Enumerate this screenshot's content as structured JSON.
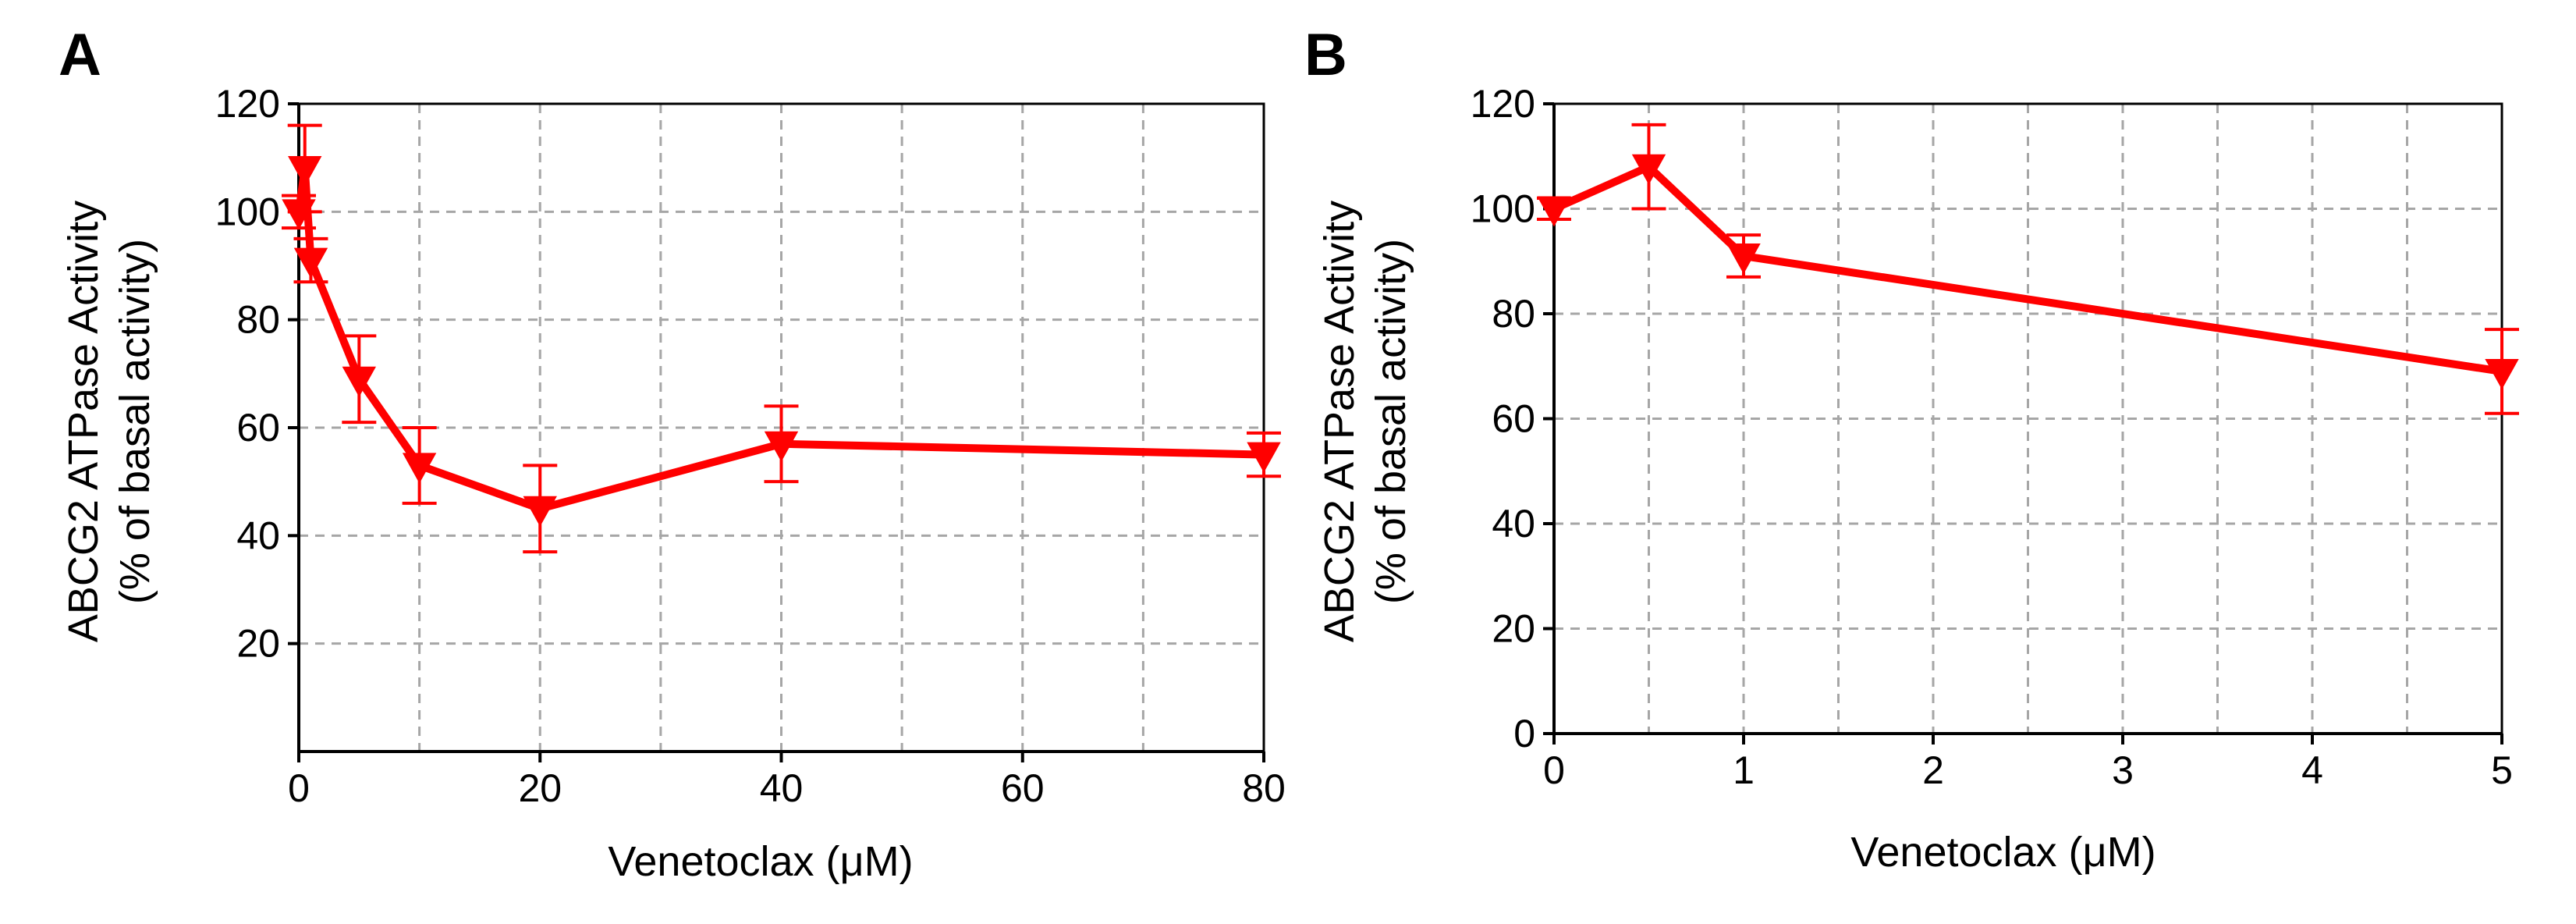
{
  "colors": {
    "series": "#ff0000",
    "grid": "#a6a6a6",
    "axis": "#000000"
  },
  "chart_data": [
    {
      "panel": "A",
      "type": "line",
      "title": "",
      "xlabel": "Venetoclax (μM)",
      "ylabel_line1": "ABCG2 ATPase Activity",
      "ylabel_line2": "(% of basal activity)",
      "xlim": [
        0,
        80
      ],
      "ylim": [
        0,
        120
      ],
      "x_ticks": [
        0,
        20,
        40,
        60,
        80
      ],
      "x_tick_labels": [
        "0",
        "20",
        "40",
        "60",
        "80"
      ],
      "x_minor": [
        10,
        30,
        50,
        70
      ],
      "y_ticks": [
        20,
        40,
        60,
        80,
        100,
        120
      ],
      "y_tick_labels": [
        "20",
        "40",
        "60",
        "80",
        "100",
        "120"
      ],
      "grid": true,
      "series": [
        {
          "name": "Venetoclax",
          "marker": "triangle-down",
          "x": [
            0,
            0.5,
            1,
            5,
            10,
            20,
            40,
            80
          ],
          "values": [
            100,
            108,
            91,
            69,
            53,
            45,
            57,
            55
          ],
          "error": [
            3,
            8,
            4,
            8,
            7,
            8,
            7,
            4
          ]
        }
      ]
    },
    {
      "panel": "B",
      "type": "line",
      "title": "",
      "xlabel": "Venetoclax (μM)",
      "ylabel_line1": "ABCG2 ATPase Activity",
      "ylabel_line2": "(% of basal activity)",
      "xlim": [
        0,
        5
      ],
      "ylim": [
        0,
        120
      ],
      "x_ticks": [
        0,
        1,
        2,
        3,
        4,
        5
      ],
      "x_tick_labels": [
        "0",
        "1",
        "2",
        "3",
        "4",
        "5"
      ],
      "x_minor": [
        0.5,
        1.5,
        2.5,
        3.5,
        4.5
      ],
      "y_ticks": [
        0,
        20,
        40,
        60,
        80,
        100,
        120
      ],
      "y_tick_labels": [
        "0",
        "20",
        "40",
        "60",
        "80",
        "100",
        "120"
      ],
      "grid": true,
      "series": [
        {
          "name": "Venetoclax",
          "marker": "triangle-down",
          "x": [
            0,
            0.5,
            1,
            5
          ],
          "values": [
            100,
            108,
            91,
            69
          ],
          "error": [
            2,
            8,
            4,
            8
          ]
        }
      ]
    }
  ]
}
